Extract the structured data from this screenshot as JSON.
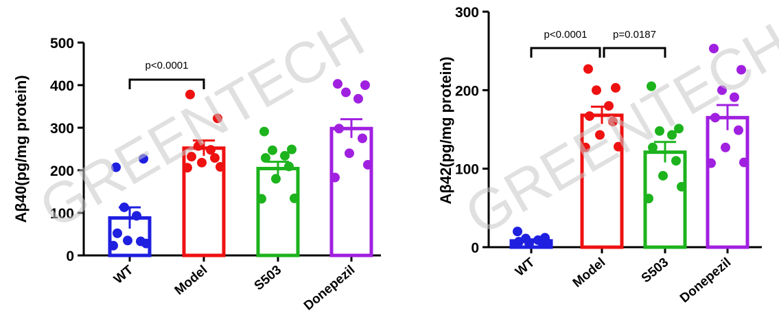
{
  "watermark": "GREENTECH",
  "chart_data": [
    {
      "type": "bar",
      "ylabel": "Aβ40(pg/mg protein)",
      "ylim": [
        0,
        500
      ],
      "yticks": [
        0,
        100,
        200,
        300,
        400,
        500
      ],
      "categories": [
        "WT",
        "Model",
        "S503",
        "Donepezil"
      ],
      "colors": [
        "#1f1fe0",
        "#ee1111",
        "#1db31d",
        "#a020e0"
      ],
      "values": [
        88,
        252,
        204,
        298
      ],
      "sem": [
        25,
        18,
        16,
        22
      ],
      "points": [
        [
          207,
          227,
          113,
          93,
          52,
          33,
          35,
          28,
          23
        ],
        [
          378,
          322,
          257,
          248,
          232,
          229,
          218,
          208,
          206
        ],
        [
          291,
          249,
          247,
          234,
          229,
          209,
          180,
          134,
          133
        ],
        [
          403,
          400,
          383,
          368,
          298,
          275,
          240,
          213,
          183
        ]
      ],
      "comparisons": [
        {
          "from": 0,
          "to": 1,
          "label": "p<0.0001"
        }
      ],
      "grid": false
    },
    {
      "type": "bar",
      "ylabel": "Aβ42(pg/mg protein)",
      "ylim": [
        0,
        300
      ],
      "yticks": [
        0,
        100,
        200,
        300
      ],
      "categories": [
        "WT",
        "Model",
        "S503",
        "Donepezil"
      ],
      "colors": [
        "#1f1fe0",
        "#ee1111",
        "#1db31d",
        "#a020e0"
      ],
      "values": [
        8,
        168,
        121,
        165
      ],
      "sem": [
        2,
        11,
        13,
        16
      ],
      "points": [
        [
          20,
          12,
          11,
          9,
          7,
          6,
          5,
          5,
          4
        ],
        [
          227,
          203,
          200,
          180,
          167,
          160,
          143,
          128,
          127
        ],
        [
          205,
          151,
          148,
          143,
          127,
          110,
          91,
          77,
          62
        ],
        [
          253,
          226,
          200,
          191,
          165,
          149,
          127,
          108,
          107
        ]
      ],
      "comparisons": [
        {
          "from": 0,
          "to": 1,
          "label": "p<0.0001"
        },
        {
          "from": 1,
          "to": 2,
          "label": "p=0.0187"
        }
      ],
      "grid": false
    }
  ]
}
